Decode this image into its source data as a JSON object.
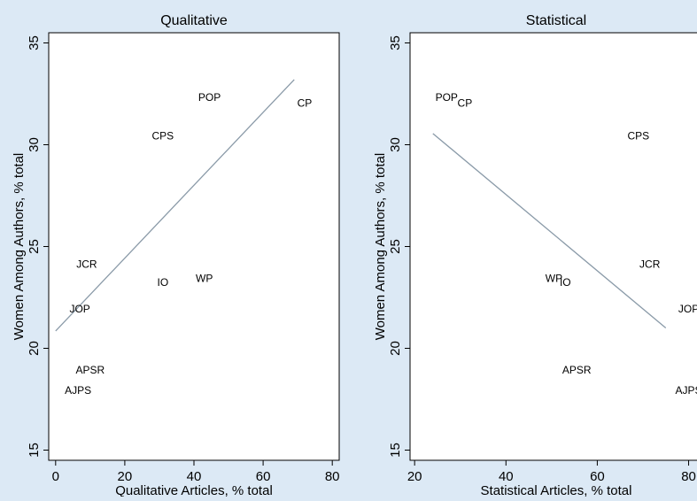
{
  "background_color": "#dce9f5",
  "plot_bg_color": "#ffffff",
  "fit_line_color": "#8a9aa8",
  "chart_data": [
    {
      "type": "scatter",
      "title": "Qualitative",
      "xlabel": "Qualitative Articles, % total",
      "ylabel": "Women Among Authors, % total",
      "xlim": [
        -2,
        82
      ],
      "ylim": [
        14.5,
        35.5
      ],
      "xticks": [
        0,
        20,
        40,
        60,
        80
      ],
      "yticks": [
        15,
        20,
        25,
        30,
        35
      ],
      "grid": false,
      "points": [
        {
          "label": "POP",
          "x": 44.5,
          "y": 32.3
        },
        {
          "label": "CP",
          "x": 72,
          "y": 32.0
        },
        {
          "label": "CPS",
          "x": 31,
          "y": 30.4
        },
        {
          "label": "JCR",
          "x": 9,
          "y": 24.1
        },
        {
          "label": "IO",
          "x": 31,
          "y": 23.2
        },
        {
          "label": "WP",
          "x": 43,
          "y": 23.4
        },
        {
          "label": "JOP",
          "x": 7,
          "y": 21.9
        },
        {
          "label": "APSR",
          "x": 10,
          "y": 18.9
        },
        {
          "label": "AJPS",
          "x": 6.5,
          "y": 17.9
        }
      ],
      "fit_line": {
        "x": [
          0,
          69
        ],
        "y": [
          20.85,
          33.2
        ]
      }
    },
    {
      "type": "scatter",
      "title": "Statistical",
      "xlabel": "Statistical Articles, % total",
      "ylabel": "Women Among Authors, % total",
      "xlim": [
        19,
        83
      ],
      "ylim": [
        14.5,
        35.5
      ],
      "xticks": [
        20,
        40,
        60,
        80
      ],
      "yticks": [
        15,
        20,
        25,
        30,
        35
      ],
      "grid": false,
      "points": [
        {
          "label": "POP",
          "x": 27,
          "y": 32.3
        },
        {
          "label": "CP",
          "x": 31,
          "y": 32.0
        },
        {
          "label": "CPS",
          "x": 69,
          "y": 30.4
        },
        {
          "label": "JCR",
          "x": 71.5,
          "y": 24.1
        },
        {
          "label": "WP",
          "x": 50.5,
          "y": 23.4
        },
        {
          "label": "IO",
          "x": 53,
          "y": 23.2
        },
        {
          "label": "JOP",
          "x": 80,
          "y": 21.9
        },
        {
          "label": "APSR",
          "x": 55.5,
          "y": 18.9
        },
        {
          "label": "AJPS",
          "x": 80,
          "y": 17.9
        }
      ],
      "fit_line": {
        "x": [
          24,
          75
        ],
        "y": [
          30.55,
          21.0
        ]
      }
    }
  ]
}
